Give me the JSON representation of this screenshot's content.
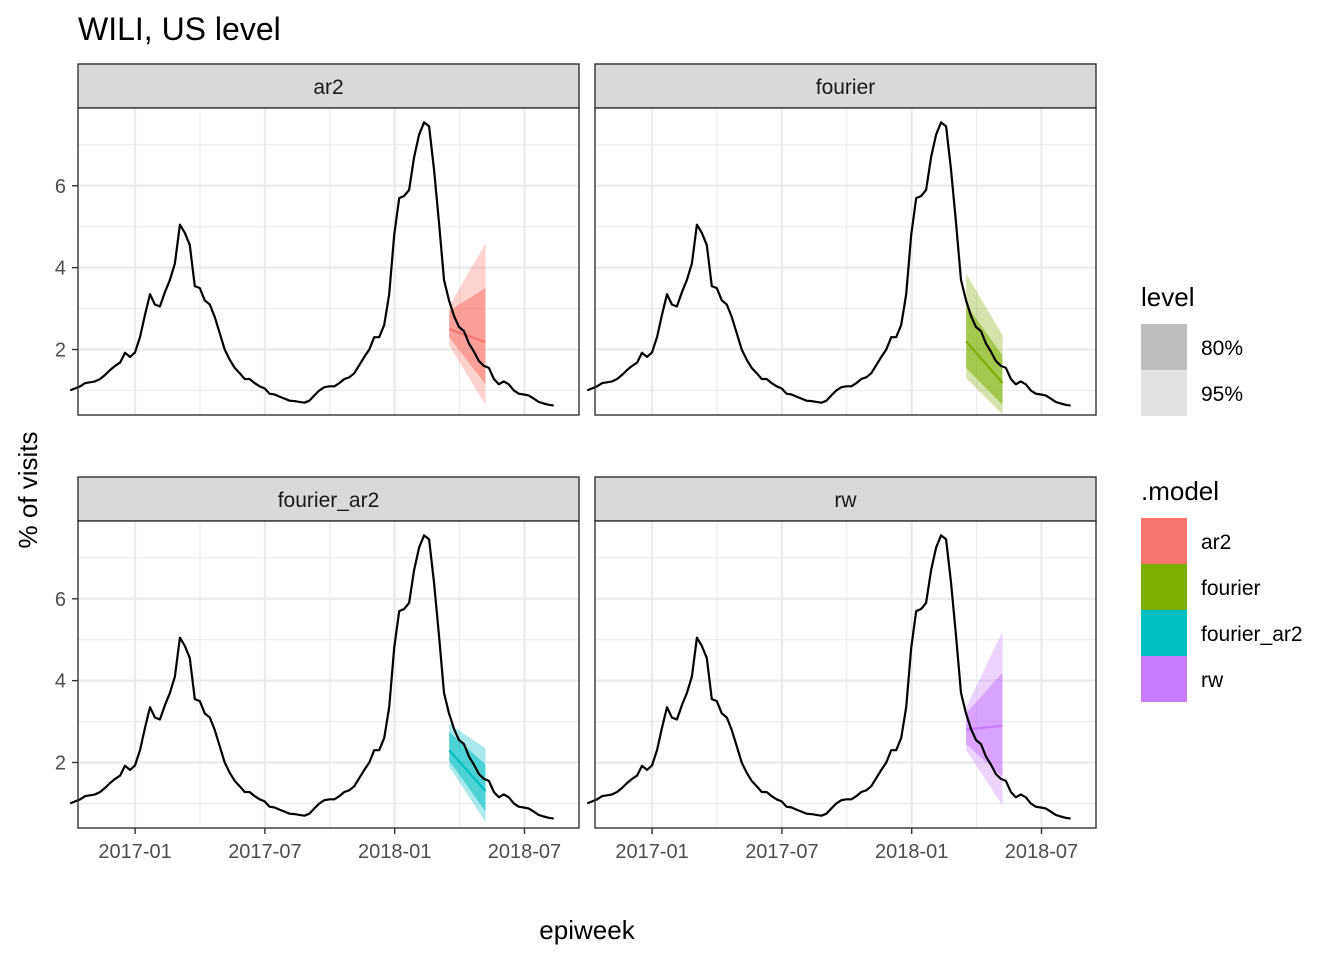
{
  "chart_data": {
    "type": "line",
    "title": "WILI, US level",
    "xlabel": "epiweek",
    "ylabel": "% of visits",
    "xlim": [
      2016.78,
      2018.71
    ],
    "ylim": [
      0.4,
      7.9
    ],
    "x_ticks": [
      {
        "label": "2017-01",
        "value": 2017.0
      },
      {
        "label": "2017-07",
        "value": 2017.5
      },
      {
        "label": "2018-01",
        "value": 2018.0
      },
      {
        "label": "2018-07",
        "value": 2018.5
      }
    ],
    "y_ticks": [
      {
        "label": "2",
        "value": 2
      },
      {
        "label": "4",
        "value": 4
      },
      {
        "label": "6",
        "value": 6
      }
    ],
    "observed": {
      "x_start": 2016.75,
      "x_step": 0.0192,
      "values": [
        1.0,
        1.05,
        1.1,
        1.18,
        1.2,
        1.22,
        1.28,
        1.38,
        1.5,
        1.6,
        1.68,
        1.92,
        1.82,
        1.93,
        2.3,
        2.85,
        3.35,
        3.1,
        3.05,
        3.4,
        3.7,
        4.1,
        5.05,
        4.85,
        4.55,
        3.55,
        3.5,
        3.2,
        3.1,
        2.8,
        2.4,
        2.0,
        1.75,
        1.55,
        1.42,
        1.28,
        1.28,
        1.18,
        1.1,
        1.05,
        0.92,
        0.9,
        0.85,
        0.8,
        0.75,
        0.74,
        0.72,
        0.7,
        0.75,
        0.88,
        1.0,
        1.08,
        1.1,
        1.1,
        1.18,
        1.28,
        1.32,
        1.42,
        1.62,
        1.82,
        2.0,
        2.3,
        2.3,
        2.6,
        3.35,
        4.8,
        5.7,
        5.75,
        5.9,
        6.7,
        7.25,
        7.55,
        7.45,
        6.4,
        5.1,
        3.7,
        3.2,
        2.82,
        2.55,
        2.45,
        2.15,
        1.95,
        1.72,
        1.6,
        1.55,
        1.28,
        1.15,
        1.22,
        1.15,
        1.0,
        0.92,
        0.9,
        0.88,
        0.8,
        0.72,
        0.68,
        0.65,
        0.63
      ]
    },
    "forecast_x": [
      2018.21,
      2018.35
    ],
    "series": [
      {
        "name": "ar2",
        "color": "#F8766D",
        "mean": [
          2.5,
          2.18
        ],
        "lo80": [
          2.3,
          1.15
        ],
        "hi80": [
          2.95,
          3.5
        ],
        "lo95": [
          2.1,
          0.65
        ],
        "hi95": [
          3.05,
          4.6
        ]
      },
      {
        "name": "fourier",
        "color": "#7CAE00",
        "mean": [
          2.2,
          1.18
        ],
        "lo80": [
          1.55,
          0.65
        ],
        "hi80": [
          3.1,
          1.85
        ],
        "lo95": [
          1.3,
          0.42
        ],
        "hi95": [
          3.85,
          2.35
        ]
      },
      {
        "name": "fourier_ar2",
        "color": "#00BFC4",
        "mean": [
          2.3,
          1.3
        ],
        "lo80": [
          2.05,
          0.8
        ],
        "hi80": [
          2.75,
          1.95
        ],
        "lo95": [
          1.9,
          0.55
        ],
        "hi95": [
          2.95,
          2.35
        ]
      },
      {
        "name": "rw",
        "color": "#C77CFF",
        "mean": [
          2.8,
          2.9
        ],
        "lo80": [
          2.45,
          1.65
        ],
        "hi80": [
          3.2,
          4.2
        ],
        "lo95": [
          2.3,
          0.95
        ],
        "hi95": [
          3.35,
          5.2
        ]
      }
    ],
    "legend": {
      "level_title": "level",
      "level_items": [
        {
          "label": "80%",
          "color": "#bebebe"
        },
        {
          "label": "95%",
          "color": "#e2e2e2"
        }
      ],
      "model_title": ".model",
      "placement": "right"
    }
  }
}
